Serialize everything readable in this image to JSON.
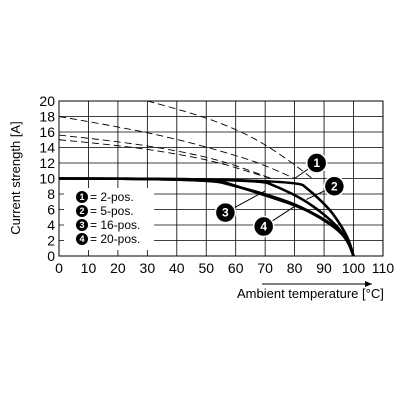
{
  "chart_data": {
    "type": "line",
    "title": "",
    "xlabel": "Ambient temperature [°C]",
    "ylabel": "Current strength [A]",
    "xlim": [
      0,
      110
    ],
    "ylim": [
      0,
      20
    ],
    "xticks": [
      0,
      10,
      20,
      30,
      40,
      50,
      60,
      70,
      80,
      90,
      100,
      110
    ],
    "yticks": [
      0,
      2,
      4,
      6,
      8,
      10,
      12,
      14,
      16,
      18,
      20
    ],
    "grid": true,
    "x_axis_arrow": true,
    "legend_placement": "bottom-left (inside plot)",
    "legend": [
      {
        "marker": "1",
        "label": "= 2-pos."
      },
      {
        "marker": "2",
        "label": "= 5-pos."
      },
      {
        "marker": "3",
        "label": "= 16-pos."
      },
      {
        "marker": "4",
        "label": "= 20-pos."
      }
    ],
    "series": [
      {
        "marker": "1",
        "style": "solid",
        "x": [
          0,
          80,
          86,
          92,
          96,
          98.5,
          100
        ],
        "y": [
          10,
          10,
          8.2,
          6.0,
          3.8,
          2.0,
          0
        ]
      },
      {
        "marker": "2",
        "style": "solid",
        "x": [
          0,
          67,
          75,
          83,
          90,
          95,
          98.5,
          100
        ],
        "y": [
          10,
          10,
          8.8,
          7.3,
          5.4,
          3.6,
          1.8,
          0
        ]
      },
      {
        "marker": "3",
        "style": "solid",
        "x": [
          0,
          50,
          60,
          70,
          80,
          88,
          94,
          98,
          100
        ],
        "y": [
          10,
          10,
          9.0,
          8.0,
          6.7,
          5.2,
          3.7,
          2.0,
          0
        ]
      },
      {
        "marker": "4",
        "style": "solid",
        "x": [
          0,
          52,
          62,
          72,
          82,
          89,
          95,
          98.5,
          100
        ],
        "y": [
          10,
          10,
          8.8,
          7.6,
          6.3,
          4.9,
          3.3,
          1.8,
          0
        ]
      },
      {
        "marker": "1",
        "style": "dashed",
        "x": [
          30,
          45,
          60,
          70,
          80,
          86
        ],
        "y": [
          20,
          18.5,
          16.4,
          14.4,
          11.8,
          10
        ]
      },
      {
        "marker": "2",
        "style": "dashed",
        "x": [
          0,
          20,
          40,
          60,
          70,
          80
        ],
        "y": [
          18,
          16.7,
          15.1,
          13.0,
          11.7,
          10
        ]
      },
      {
        "marker": "3",
        "style": "dashed",
        "x": [
          0,
          20,
          40,
          55,
          65,
          72
        ],
        "y": [
          15.6,
          14.8,
          13.6,
          12.3,
          11.0,
          10
        ]
      },
      {
        "marker": "4",
        "style": "dashed",
        "x": [
          0,
          20,
          40,
          55,
          65,
          72
        ],
        "y": [
          15.0,
          14.3,
          13.2,
          12.0,
          10.8,
          10
        ]
      }
    ],
    "annotations": [
      {
        "marker": "1",
        "at": [
          87.5,
          12.0
        ]
      },
      {
        "marker": "2",
        "at": [
          93.5,
          9.0
        ]
      },
      {
        "marker": "3",
        "at": [
          56.5,
          5.6
        ]
      },
      {
        "marker": "4",
        "at": [
          69.5,
          3.8
        ]
      }
    ]
  }
}
